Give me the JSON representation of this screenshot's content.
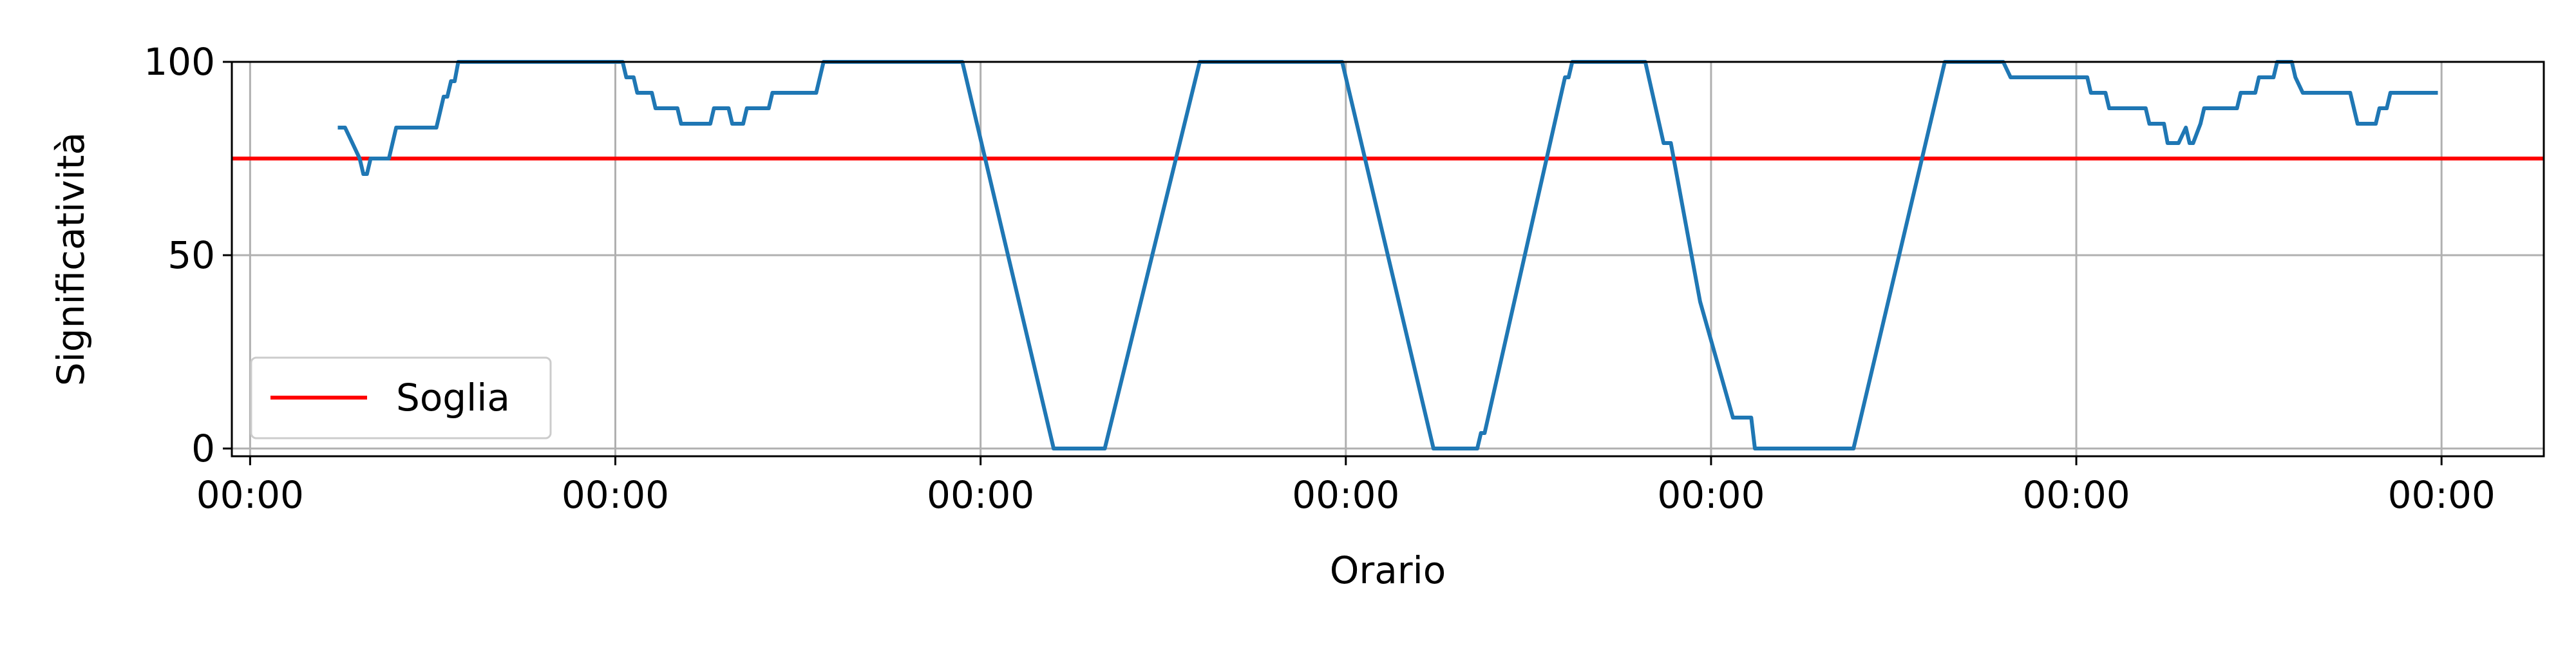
{
  "chart_data": {
    "type": "line",
    "xlabel": "Orario",
    "ylabel": "Significatività",
    "xlim": [
      -0.05,
      6.28
    ],
    "ylim": [
      -2,
      100
    ],
    "x_ticks": [
      0,
      1,
      2,
      3,
      4,
      5,
      6
    ],
    "x_tick_labels": [
      "00:00",
      "00:00",
      "00:00",
      "00:00",
      "00:00",
      "00:00",
      "00:00"
    ],
    "y_ticks": [
      0,
      50,
      100
    ],
    "y_tick_labels": [
      "0",
      "50",
      "100"
    ],
    "grid": true,
    "legend": {
      "placement": "lower-left",
      "entries": [
        "Soglia"
      ]
    },
    "threshold": {
      "name": "Soglia",
      "value": 75,
      "color": "#ff0000"
    },
    "series": [
      {
        "color": "#1f77b4",
        "points": [
          [
            0.24,
            83
          ],
          [
            0.26,
            83
          ],
          [
            0.28,
            79
          ],
          [
            0.3,
            75
          ],
          [
            0.31,
            71
          ],
          [
            0.32,
            71
          ],
          [
            0.33,
            75
          ],
          [
            0.38,
            75
          ],
          [
            0.4,
            83
          ],
          [
            0.51,
            83
          ],
          [
            0.52,
            87
          ],
          [
            0.53,
            91
          ],
          [
            0.54,
            91
          ],
          [
            0.55,
            95
          ],
          [
            0.56,
            95
          ],
          [
            0.57,
            100
          ],
          [
            0.58,
            100
          ],
          [
            1.02,
            100
          ],
          [
            1.03,
            96
          ],
          [
            1.05,
            96
          ],
          [
            1.06,
            92
          ],
          [
            1.1,
            92
          ],
          [
            1.11,
            88
          ],
          [
            1.17,
            88
          ],
          [
            1.18,
            84
          ],
          [
            1.26,
            84
          ],
          [
            1.27,
            88
          ],
          [
            1.31,
            88
          ],
          [
            1.32,
            84
          ],
          [
            1.35,
            84
          ],
          [
            1.36,
            88
          ],
          [
            1.42,
            88
          ],
          [
            1.43,
            92
          ],
          [
            1.55,
            92
          ],
          [
            1.57,
            100
          ],
          [
            1.95,
            100
          ],
          [
            2.2,
            0
          ],
          [
            2.34,
            0
          ],
          [
            2.6,
            100
          ],
          [
            2.99,
            100
          ],
          [
            3.24,
            0
          ],
          [
            3.36,
            0
          ],
          [
            3.37,
            4
          ],
          [
            3.38,
            4
          ],
          [
            3.6,
            96
          ],
          [
            3.61,
            96
          ],
          [
            3.62,
            100
          ],
          [
            3.82,
            100
          ],
          [
            3.87,
            79
          ],
          [
            3.89,
            79
          ],
          [
            3.97,
            38
          ],
          [
            4.06,
            8
          ],
          [
            4.11,
            8
          ],
          [
            4.12,
            0
          ],
          [
            4.39,
            0
          ],
          [
            4.64,
            100
          ],
          [
            4.8,
            100
          ],
          [
            4.82,
            96
          ],
          [
            5.03,
            96
          ],
          [
            5.04,
            92
          ],
          [
            5.08,
            92
          ],
          [
            5.09,
            88
          ],
          [
            5.19,
            88
          ],
          [
            5.2,
            84
          ],
          [
            5.24,
            84
          ],
          [
            5.25,
            79
          ],
          [
            5.28,
            79
          ],
          [
            5.3,
            83
          ],
          [
            5.31,
            79
          ],
          [
            5.32,
            79
          ],
          [
            5.34,
            84
          ],
          [
            5.35,
            88
          ],
          [
            5.44,
            88
          ],
          [
            5.45,
            92
          ],
          [
            5.49,
            92
          ],
          [
            5.5,
            96
          ],
          [
            5.54,
            96
          ],
          [
            5.55,
            100
          ],
          [
            5.59,
            100
          ],
          [
            5.6,
            96
          ],
          [
            5.62,
            92
          ],
          [
            5.75,
            92
          ],
          [
            5.77,
            84
          ],
          [
            5.82,
            84
          ],
          [
            5.83,
            88
          ],
          [
            5.85,
            88
          ],
          [
            5.86,
            92
          ],
          [
            5.99,
            92
          ]
        ]
      }
    ]
  }
}
